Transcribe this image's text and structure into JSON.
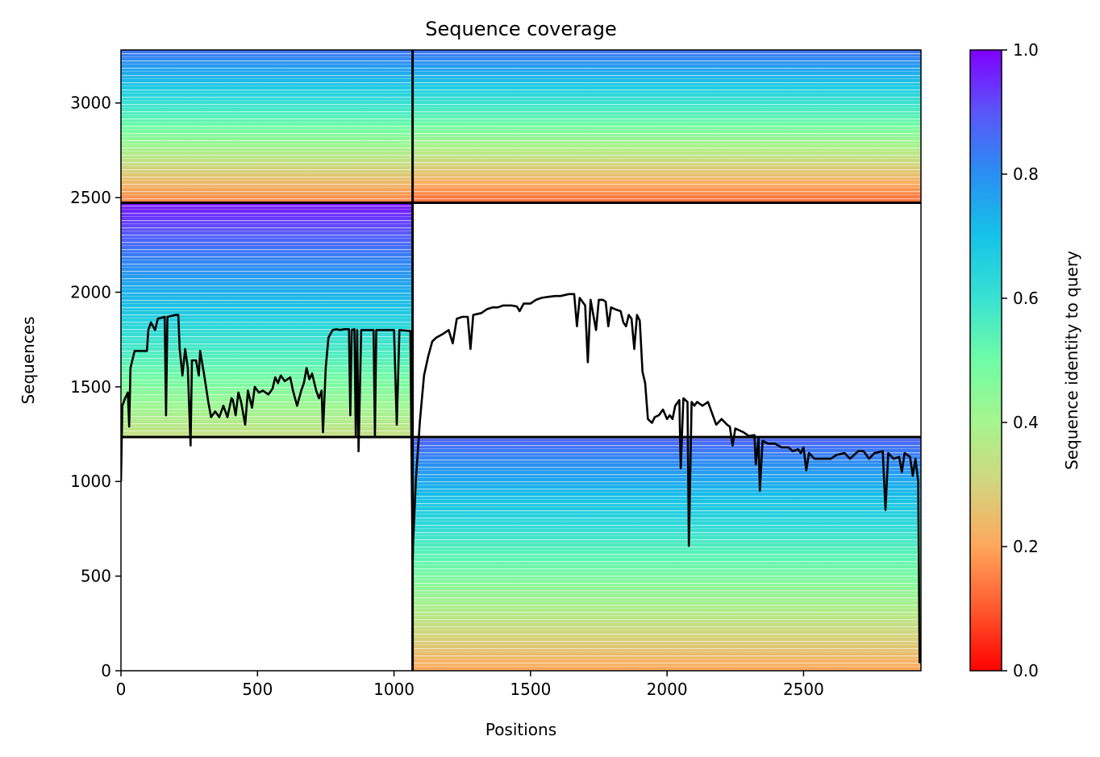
{
  "chart_data": {
    "type": "heatmap",
    "title": "Sequence coverage",
    "xlabel": "Positions",
    "ylabel": "Sequences",
    "colorbar_label": "Sequence identity to query",
    "colormap": "rainbow_r",
    "xlim": [
      0,
      2930
    ],
    "ylim": [
      0,
      3280
    ],
    "x_ticks": [
      0,
      500,
      1000,
      1500,
      2000,
      2500
    ],
    "x_tick_labels": [
      "0",
      "500",
      "1000",
      "1500",
      "2000",
      "2500"
    ],
    "y_ticks": [
      0,
      500,
      1000,
      1500,
      2000,
      2500,
      3000
    ],
    "y_tick_labels": [
      "0",
      "500",
      "1000",
      "1500",
      "2000",
      "2500",
      "3000"
    ],
    "colorbar_ticks": [
      0.0,
      0.2,
      0.4,
      0.6,
      0.8,
      1.0
    ],
    "colorbar_tick_labels": [
      "0.0",
      "0.2",
      "0.4",
      "0.6",
      "0.8",
      "1.0"
    ],
    "block_dividers": {
      "x": [
        1068
      ],
      "y": [
        1235,
        2473
      ]
    },
    "blocks": [
      {
        "name": "block-top-left",
        "x": [
          0,
          1068
        ],
        "y": [
          2473,
          3280
        ],
        "identity_top": 0.85,
        "identity_bottom": 0.15
      },
      {
        "name": "block-top-right",
        "x": [
          1068,
          2930
        ],
        "y": [
          2473,
          3280
        ],
        "identity_top": 0.85,
        "identity_bottom": 0.12
      },
      {
        "name": "block-middle-left",
        "x": [
          0,
          1068
        ],
        "y": [
          1235,
          2473
        ],
        "identity_top": 0.98,
        "identity_bottom": 0.33
      },
      {
        "name": "block-bottom-right",
        "x": [
          1068,
          2930
        ],
        "y": [
          0,
          1235
        ],
        "identity_top": 0.88,
        "identity_bottom": 0.2
      }
    ],
    "coverage_line": {
      "name": "coverage",
      "color": "#000000",
      "points": [
        [
          0,
          1000
        ],
        [
          5,
          1400
        ],
        [
          15,
          1440
        ],
        [
          25,
          1470
        ],
        [
          30,
          1290
        ],
        [
          35,
          1600
        ],
        [
          50,
          1690
        ],
        [
          80,
          1690
        ],
        [
          95,
          1690
        ],
        [
          100,
          1800
        ],
        [
          110,
          1840
        ],
        [
          125,
          1800
        ],
        [
          135,
          1860
        ],
        [
          160,
          1870
        ],
        [
          165,
          1350
        ],
        [
          170,
          1870
        ],
        [
          200,
          1880
        ],
        [
          210,
          1880
        ],
        [
          215,
          1700
        ],
        [
          225,
          1560
        ],
        [
          235,
          1700
        ],
        [
          245,
          1600
        ],
        [
          255,
          1190
        ],
        [
          260,
          1640
        ],
        [
          275,
          1640
        ],
        [
          285,
          1560
        ],
        [
          290,
          1690
        ],
        [
          305,
          1560
        ],
        [
          320,
          1420
        ],
        [
          330,
          1340
        ],
        [
          345,
          1370
        ],
        [
          360,
          1340
        ],
        [
          375,
          1400
        ],
        [
          390,
          1340
        ],
        [
          405,
          1440
        ],
        [
          410,
          1430
        ],
        [
          420,
          1350
        ],
        [
          430,
          1470
        ],
        [
          440,
          1420
        ],
        [
          455,
          1300
        ],
        [
          465,
          1480
        ],
        [
          480,
          1390
        ],
        [
          490,
          1500
        ],
        [
          505,
          1470
        ],
        [
          520,
          1480
        ],
        [
          540,
          1460
        ],
        [
          555,
          1490
        ],
        [
          565,
          1550
        ],
        [
          575,
          1520
        ],
        [
          585,
          1560
        ],
        [
          600,
          1530
        ],
        [
          620,
          1550
        ],
        [
          630,
          1480
        ],
        [
          645,
          1400
        ],
        [
          660,
          1480
        ],
        [
          670,
          1520
        ],
        [
          680,
          1600
        ],
        [
          690,
          1540
        ],
        [
          700,
          1570
        ],
        [
          715,
          1480
        ],
        [
          725,
          1440
        ],
        [
          735,
          1480
        ],
        [
          740,
          1260
        ],
        [
          750,
          1600
        ],
        [
          760,
          1760
        ],
        [
          775,
          1800
        ],
        [
          790,
          1805
        ],
        [
          800,
          1800
        ],
        [
          820,
          1805
        ],
        [
          835,
          1805
        ],
        [
          840,
          1350
        ],
        [
          845,
          1800
        ],
        [
          855,
          1805
        ],
        [
          860,
          1240
        ],
        [
          865,
          1800
        ],
        [
          870,
          1160
        ],
        [
          880,
          1800
        ],
        [
          905,
          1800
        ],
        [
          925,
          1800
        ],
        [
          930,
          1240
        ],
        [
          935,
          1800
        ],
        [
          970,
          1800
        ],
        [
          985,
          1800
        ],
        [
          1000,
          1800
        ],
        [
          1010,
          1300
        ],
        [
          1020,
          1800
        ],
        [
          1060,
          1795
        ],
        [
          1068,
          560
        ],
        [
          1070,
          680
        ],
        [
          1080,
          1010
        ],
        [
          1095,
          1320
        ],
        [
          1110,
          1560
        ],
        [
          1125,
          1660
        ],
        [
          1140,
          1740
        ],
        [
          1155,
          1760
        ],
        [
          1180,
          1780
        ],
        [
          1200,
          1800
        ],
        [
          1215,
          1730
        ],
        [
          1230,
          1860
        ],
        [
          1250,
          1870
        ],
        [
          1270,
          1870
        ],
        [
          1280,
          1700
        ],
        [
          1290,
          1880
        ],
        [
          1320,
          1890
        ],
        [
          1340,
          1910
        ],
        [
          1360,
          1920
        ],
        [
          1380,
          1920
        ],
        [
          1400,
          1930
        ],
        [
          1430,
          1930
        ],
        [
          1450,
          1925
        ],
        [
          1460,
          1900
        ],
        [
          1475,
          1940
        ],
        [
          1500,
          1940
        ],
        [
          1520,
          1960
        ],
        [
          1540,
          1970
        ],
        [
          1560,
          1975
        ],
        [
          1590,
          1980
        ],
        [
          1610,
          1980
        ],
        [
          1640,
          1990
        ],
        [
          1660,
          1990
        ],
        [
          1670,
          1820
        ],
        [
          1680,
          1970
        ],
        [
          1700,
          1930
        ],
        [
          1710,
          1630
        ],
        [
          1720,
          1960
        ],
        [
          1740,
          1800
        ],
        [
          1750,
          1960
        ],
        [
          1765,
          1960
        ],
        [
          1775,
          1950
        ],
        [
          1785,
          1820
        ],
        [
          1795,
          1920
        ],
        [
          1810,
          1910
        ],
        [
          1830,
          1900
        ],
        [
          1840,
          1840
        ],
        [
          1850,
          1820
        ],
        [
          1860,
          1880
        ],
        [
          1870,
          1860
        ],
        [
          1880,
          1700
        ],
        [
          1890,
          1880
        ],
        [
          1900,
          1850
        ],
        [
          1910,
          1580
        ],
        [
          1920,
          1520
        ],
        [
          1930,
          1330
        ],
        [
          1945,
          1310
        ],
        [
          1955,
          1340
        ],
        [
          1970,
          1350
        ],
        [
          1985,
          1380
        ],
        [
          2000,
          1330
        ],
        [
          2010,
          1350
        ],
        [
          2020,
          1330
        ],
        [
          2030,
          1400
        ],
        [
          2045,
          1430
        ],
        [
          2050,
          1070
        ],
        [
          2060,
          1440
        ],
        [
          2075,
          1420
        ],
        [
          2080,
          660
        ],
        [
          2090,
          1420
        ],
        [
          2100,
          1400
        ],
        [
          2110,
          1420
        ],
        [
          2130,
          1400
        ],
        [
          2150,
          1420
        ],
        [
          2160,
          1380
        ],
        [
          2170,
          1340
        ],
        [
          2180,
          1300
        ],
        [
          2200,
          1330
        ],
        [
          2220,
          1300
        ],
        [
          2230,
          1290
        ],
        [
          2240,
          1190
        ],
        [
          2250,
          1280
        ],
        [
          2280,
          1260
        ],
        [
          2300,
          1240
        ],
        [
          2320,
          1245
        ],
        [
          2325,
          1090
        ],
        [
          2335,
          1230
        ],
        [
          2340,
          950
        ],
        [
          2350,
          1215
        ],
        [
          2370,
          1200
        ],
        [
          2395,
          1200
        ],
        [
          2420,
          1180
        ],
        [
          2445,
          1180
        ],
        [
          2460,
          1160
        ],
        [
          2480,
          1170
        ],
        [
          2490,
          1150
        ],
        [
          2500,
          1180
        ],
        [
          2510,
          1060
        ],
        [
          2520,
          1150
        ],
        [
          2540,
          1120
        ],
        [
          2570,
          1120
        ],
        [
          2600,
          1120
        ],
        [
          2620,
          1140
        ],
        [
          2650,
          1150
        ],
        [
          2670,
          1120
        ],
        [
          2700,
          1160
        ],
        [
          2720,
          1160
        ],
        [
          2740,
          1120
        ],
        [
          2760,
          1150
        ],
        [
          2790,
          1160
        ],
        [
          2800,
          850
        ],
        [
          2810,
          1150
        ],
        [
          2830,
          1120
        ],
        [
          2850,
          1130
        ],
        [
          2860,
          1050
        ],
        [
          2870,
          1150
        ],
        [
          2890,
          1130
        ],
        [
          2900,
          1030
        ],
        [
          2910,
          1120
        ],
        [
          2920,
          1000
        ],
        [
          2925,
          40
        ]
      ]
    }
  }
}
